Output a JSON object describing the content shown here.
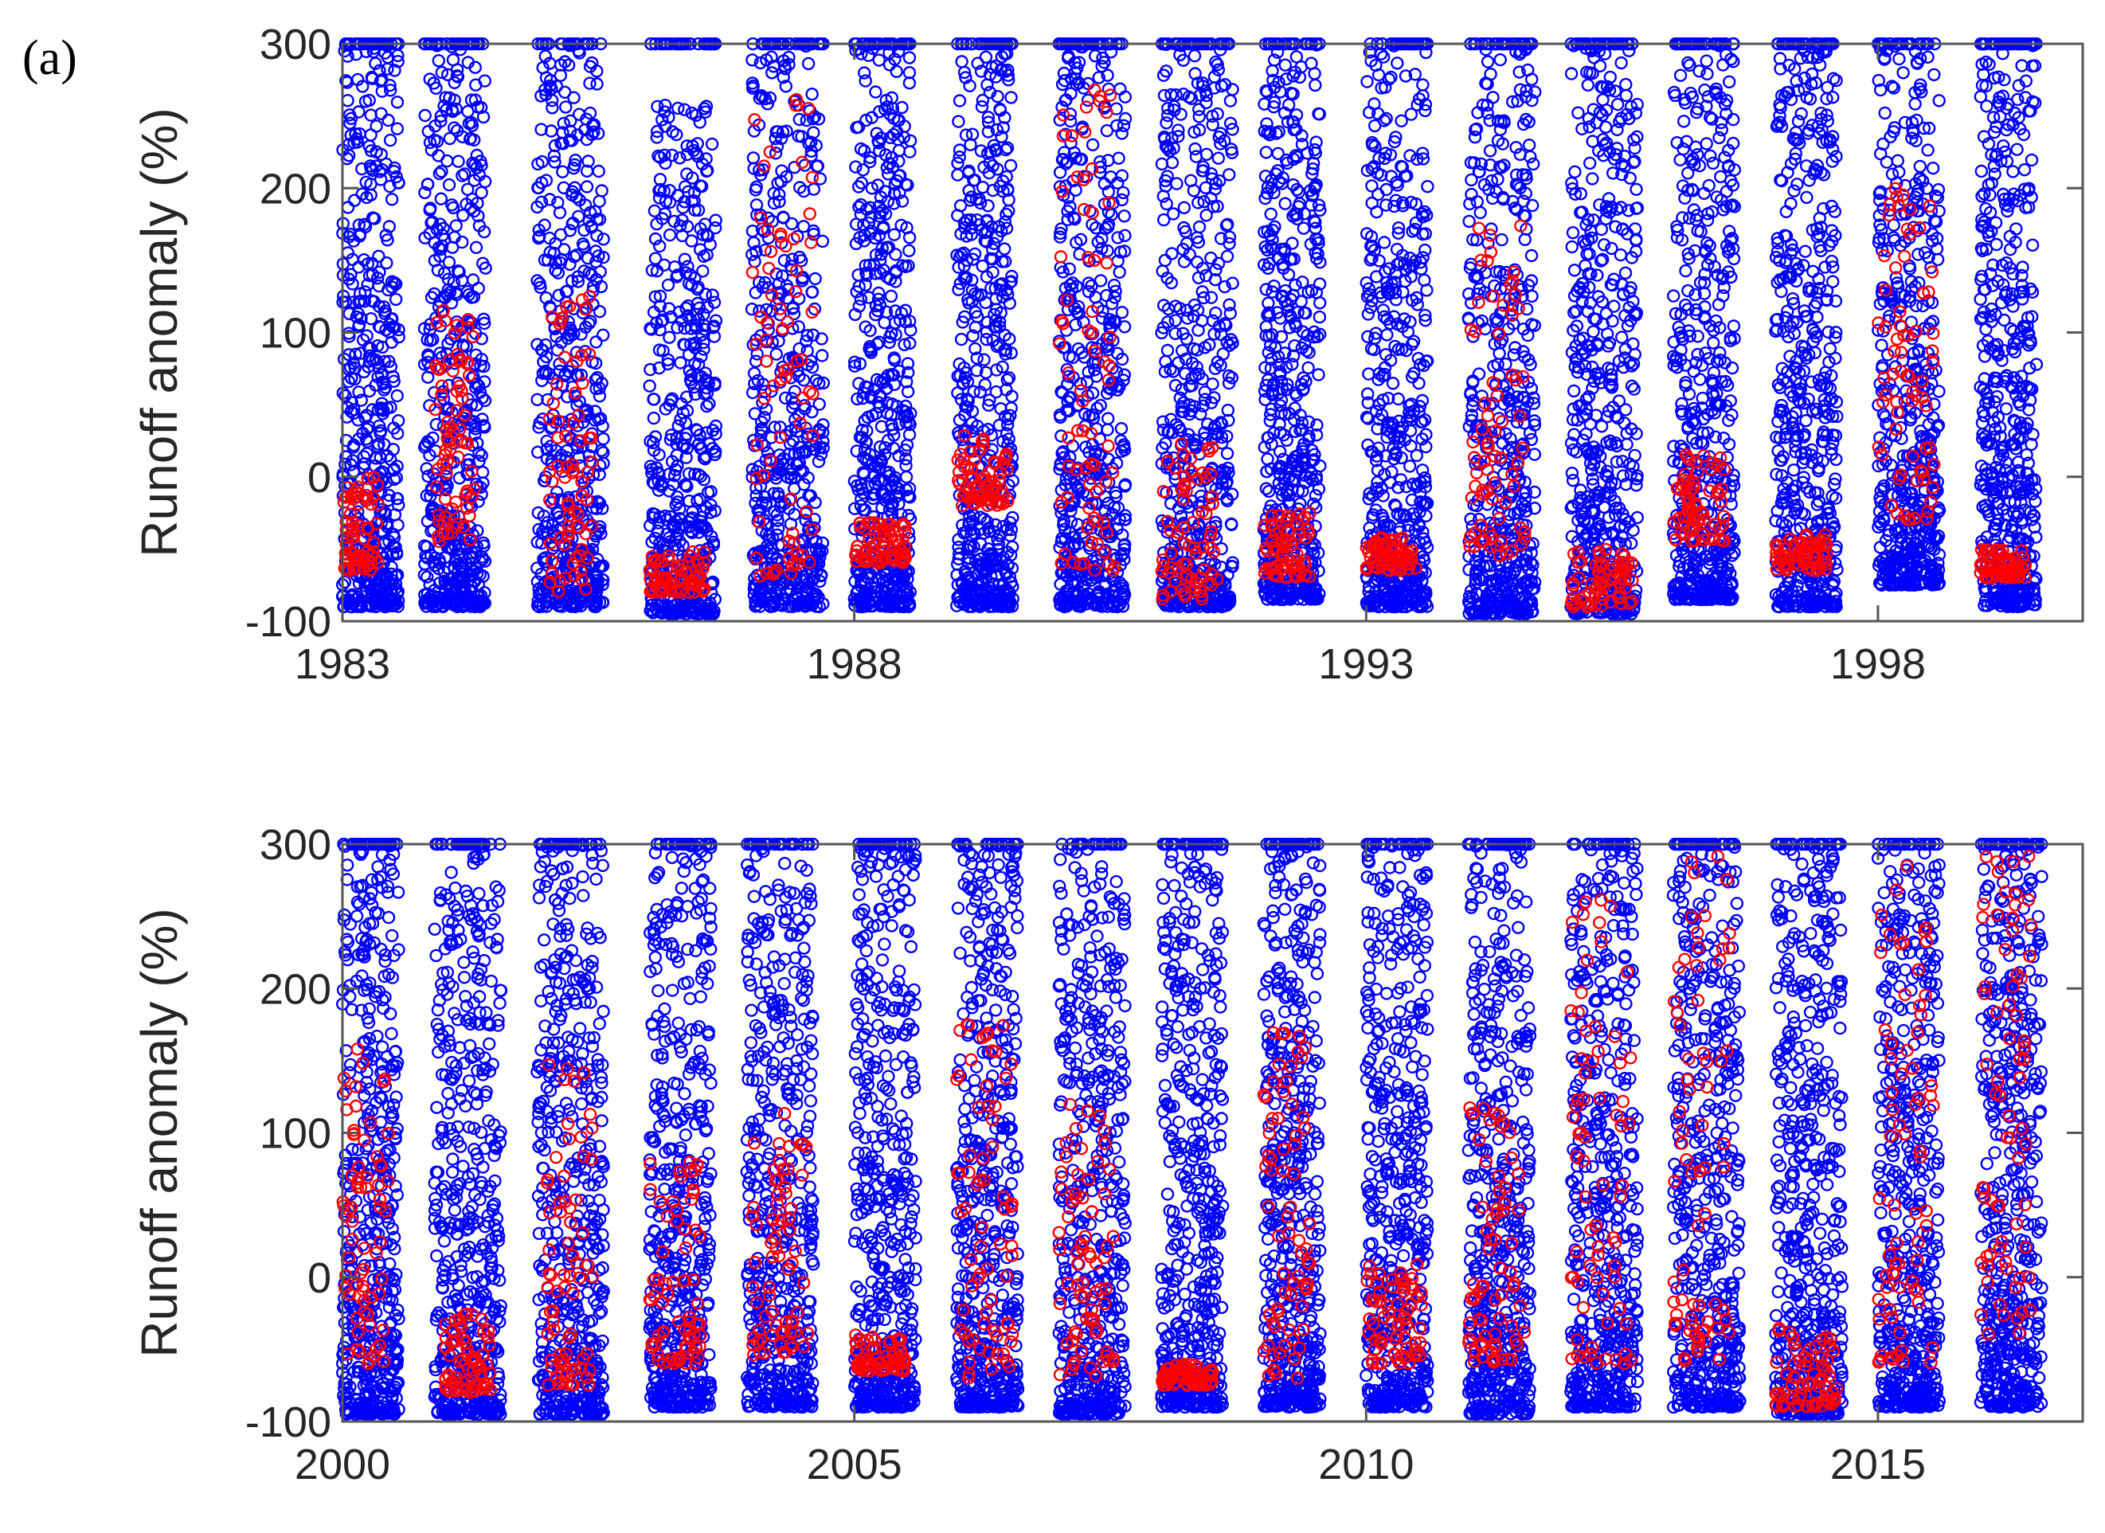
{
  "figure": {
    "panel_label": "(a)"
  },
  "chart_data": [
    {
      "type": "scatter",
      "ylabel": "Runoff anomaly (%)",
      "xlabel": "",
      "title": "",
      "xlim": [
        1983,
        2000
      ],
      "ylim": [
        -100,
        300
      ],
      "xticks": [
        1983,
        1988,
        1993,
        1998
      ],
      "xtick_labels": [
        "1983",
        "1988",
        "1993",
        "1998"
      ],
      "yticks": [
        -100,
        0,
        100,
        200,
        300
      ],
      "ytick_labels": [
        "-100",
        "0",
        "100",
        "200",
        "300"
      ],
      "grid": false,
      "legend": "none",
      "series": [
        {
          "color": "#0000ff",
          "marker": "open-circle",
          "clusters": [
            {
              "x_range": [
                1983.0,
                1983.55
              ],
              "y_range": [
                -90,
                300
              ]
            },
            {
              "x_range": [
                1983.8,
                1984.4
              ],
              "y_range": [
                -90,
                300
              ]
            },
            {
              "x_range": [
                1984.9,
                1985.55
              ],
              "y_range": [
                -90,
                300
              ]
            },
            {
              "x_range": [
                1986.0,
                1986.65
              ],
              "y_range": [
                -95,
                260
              ]
            },
            {
              "x_range": [
                1987.0,
                1987.7
              ],
              "y_range": [
                -90,
                300
              ]
            },
            {
              "x_range": [
                1988.0,
                1988.55
              ],
              "y_range": [
                -90,
                300
              ]
            },
            {
              "x_range": [
                1989.0,
                1989.55
              ],
              "y_range": [
                -90,
                300
              ]
            },
            {
              "x_range": [
                1990.0,
                1990.65
              ],
              "y_range": [
                -90,
                300
              ]
            },
            {
              "x_range": [
                1991.0,
                1991.7
              ],
              "y_range": [
                -90,
                300
              ]
            },
            {
              "x_range": [
                1992.0,
                1992.55
              ],
              "y_range": [
                -85,
                300
              ]
            },
            {
              "x_range": [
                1993.0,
                1993.6
              ],
              "y_range": [
                -90,
                300
              ]
            },
            {
              "x_range": [
                1994.0,
                1994.65
              ],
              "y_range": [
                -95,
                300
              ]
            },
            {
              "x_range": [
                1995.0,
                1995.65
              ],
              "y_range": [
                -95,
                300
              ]
            },
            {
              "x_range": [
                1996.0,
                1996.6
              ],
              "y_range": [
                -85,
                300
              ]
            },
            {
              "x_range": [
                1997.0,
                1997.6
              ],
              "y_range": [
                -90,
                300
              ]
            },
            {
              "x_range": [
                1998.0,
                1998.6
              ],
              "y_range": [
                -75,
                300
              ]
            },
            {
              "x_range": [
                1999.0,
                1999.55
              ],
              "y_range": [
                -90,
                300
              ]
            }
          ]
        },
        {
          "color": "#ff0000",
          "marker": "open-circle",
          "clusters": [
            {
              "x_range": [
                1983.0,
                1983.35
              ],
              "y_range": [
                -65,
                0
              ]
            },
            {
              "x_range": [
                1983.9,
                1984.3
              ],
              "y_range": [
                -45,
                120
              ]
            },
            {
              "x_range": [
                1985.0,
                1985.45
              ],
              "y_range": [
                -80,
                125
              ]
            },
            {
              "x_range": [
                1986.0,
                1986.55
              ],
              "y_range": [
                -80,
                -50
              ]
            },
            {
              "x_range": [
                1987.0,
                1987.6
              ],
              "y_range": [
                -70,
                280
              ]
            },
            {
              "x_range": [
                1988.0,
                1988.5
              ],
              "y_range": [
                -60,
                -30
              ]
            },
            {
              "x_range": [
                1989.0,
                1989.5
              ],
              "y_range": [
                -20,
                30
              ]
            },
            {
              "x_range": [
                1990.0,
                1990.55
              ],
              "y_range": [
                -65,
                275
              ]
            },
            {
              "x_range": [
                1991.0,
                1991.55
              ],
              "y_range": [
                -85,
                25
              ]
            },
            {
              "x_range": [
                1992.0,
                1992.45
              ],
              "y_range": [
                -70,
                -25
              ]
            },
            {
              "x_range": [
                1993.0,
                1993.5
              ],
              "y_range": [
                -65,
                -40
              ]
            },
            {
              "x_range": [
                1994.0,
                1994.55
              ],
              "y_range": [
                -55,
                175
              ]
            },
            {
              "x_range": [
                1995.0,
                1995.6
              ],
              "y_range": [
                -90,
                -50
              ]
            },
            {
              "x_range": [
                1996.0,
                1996.5
              ],
              "y_range": [
                -45,
                20
              ]
            },
            {
              "x_range": [
                1997.0,
                1997.5
              ],
              "y_range": [
                -65,
                -40
              ]
            },
            {
              "x_range": [
                1998.0,
                1998.55
              ],
              "y_range": [
                -30,
                200
              ]
            },
            {
              "x_range": [
                1999.0,
                1999.45
              ],
              "y_range": [
                -70,
                -50
              ]
            }
          ]
        }
      ]
    },
    {
      "type": "scatter",
      "ylabel": "Runoff anomaly (%)",
      "xlabel": "",
      "title": "",
      "xlim": [
        2000,
        2017
      ],
      "ylim": [
        -100,
        300
      ],
      "xticks": [
        2000,
        2005,
        2010,
        2015
      ],
      "xtick_labels": [
        "2000",
        "2005",
        "2010",
        "2015"
      ],
      "yticks": [
        -100,
        0,
        100,
        200,
        300
      ],
      "ytick_labels": [
        "-100",
        "0",
        "100",
        "200",
        "300"
      ],
      "grid": false,
      "legend": "none",
      "series": [
        {
          "color": "#0000ff",
          "marker": "open-circle",
          "clusters": [
            {
              "x_range": [
                2000.0,
                2000.55
              ],
              "y_range": [
                -95,
                300
              ]
            },
            {
              "x_range": [
                2000.9,
                2001.55
              ],
              "y_range": [
                -95,
                300
              ]
            },
            {
              "x_range": [
                2001.9,
                2002.55
              ],
              "y_range": [
                -95,
                300
              ]
            },
            {
              "x_range": [
                2003.0,
                2003.6
              ],
              "y_range": [
                -90,
                300
              ]
            },
            {
              "x_range": [
                2003.95,
                2004.6
              ],
              "y_range": [
                -90,
                300
              ]
            },
            {
              "x_range": [
                2005.0,
                2005.6
              ],
              "y_range": [
                -90,
                300
              ]
            },
            {
              "x_range": [
                2006.0,
                2006.6
              ],
              "y_range": [
                -90,
                300
              ]
            },
            {
              "x_range": [
                2007.0,
                2007.65
              ],
              "y_range": [
                -95,
                300
              ]
            },
            {
              "x_range": [
                2008.0,
                2008.6
              ],
              "y_range": [
                -90,
                300
              ]
            },
            {
              "x_range": [
                2009.0,
                2009.55
              ],
              "y_range": [
                -90,
                300
              ]
            },
            {
              "x_range": [
                2010.0,
                2010.6
              ],
              "y_range": [
                -90,
                300
              ]
            },
            {
              "x_range": [
                2011.0,
                2011.6
              ],
              "y_range": [
                -95,
                300
              ]
            },
            {
              "x_range": [
                2012.0,
                2012.65
              ],
              "y_range": [
                -90,
                300
              ]
            },
            {
              "x_range": [
                2013.0,
                2013.65
              ],
              "y_range": [
                -90,
                300
              ]
            },
            {
              "x_range": [
                2014.0,
                2014.65
              ],
              "y_range": [
                -95,
                300
              ]
            },
            {
              "x_range": [
                2015.0,
                2015.6
              ],
              "y_range": [
                -90,
                300
              ]
            },
            {
              "x_range": [
                2016.0,
                2016.6
              ],
              "y_range": [
                -90,
                300
              ]
            }
          ]
        },
        {
          "color": "#ff0000",
          "marker": "open-circle",
          "clusters": [
            {
              "x_range": [
                2000.0,
                2000.45
              ],
              "y_range": [
                -60,
                160
              ]
            },
            {
              "x_range": [
                2001.0,
                2001.45
              ],
              "y_range": [
                -80,
                -25
              ]
            },
            {
              "x_range": [
                2002.0,
                2002.45
              ],
              "y_range": [
                -75,
                150
              ]
            },
            {
              "x_range": [
                2003.0,
                2003.5
              ],
              "y_range": [
                -60,
                80
              ]
            },
            {
              "x_range": [
                2004.0,
                2004.55
              ],
              "y_range": [
                -55,
                115
              ]
            },
            {
              "x_range": [
                2005.0,
                2005.5
              ],
              "y_range": [
                -65,
                -40
              ]
            },
            {
              "x_range": [
                2006.0,
                2006.55
              ],
              "y_range": [
                -70,
                180
              ]
            },
            {
              "x_range": [
                2007.0,
                2007.55
              ],
              "y_range": [
                -75,
                120
              ]
            },
            {
              "x_range": [
                2008.0,
                2008.5
              ],
              "y_range": [
                -75,
                -60
              ]
            },
            {
              "x_range": [
                2009.0,
                2009.45
              ],
              "y_range": [
                -70,
                170
              ]
            },
            {
              "x_range": [
                2010.0,
                2010.55
              ],
              "y_range": [
                -60,
                10
              ]
            },
            {
              "x_range": [
                2011.0,
                2011.55
              ],
              "y_range": [
                -60,
                120
              ]
            },
            {
              "x_range": [
                2012.0,
                2012.6
              ],
              "y_range": [
                -60,
                280
              ]
            },
            {
              "x_range": [
                2013.0,
                2013.55
              ],
              "y_range": [
                -60,
                295
              ]
            },
            {
              "x_range": [
                2014.0,
                2014.6
              ],
              "y_range": [
                -90,
                -35
              ]
            },
            {
              "x_range": [
                2015.0,
                2015.55
              ],
              "y_range": [
                -60,
                290
              ]
            },
            {
              "x_range": [
                2016.0,
                2016.5
              ],
              "y_range": [
                -40,
                295
              ]
            }
          ]
        }
      ]
    }
  ]
}
